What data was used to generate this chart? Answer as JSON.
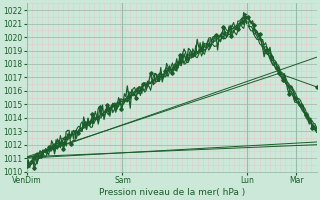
{
  "xlabel": "Pression niveau de la mer( hPa )",
  "bg_color": "#cce8d8",
  "minor_grid_color": "#e8c8c8",
  "major_grid_color": "#99bbaa",
  "line_color": "#1a5c2a",
  "ylim": [
    1010.0,
    1022.5
  ],
  "xlim": [
    0,
    1
  ],
  "yticks": [
    1010,
    1011,
    1012,
    1013,
    1014,
    1015,
    1016,
    1017,
    1018,
    1019,
    1020,
    1021,
    1022
  ],
  "xtick_labels": [
    "VenDim",
    "Sam",
    "Lun",
    "Mar"
  ],
  "xtick_positions": [
    0.0,
    0.33,
    0.76,
    0.93
  ],
  "n_points": 200
}
